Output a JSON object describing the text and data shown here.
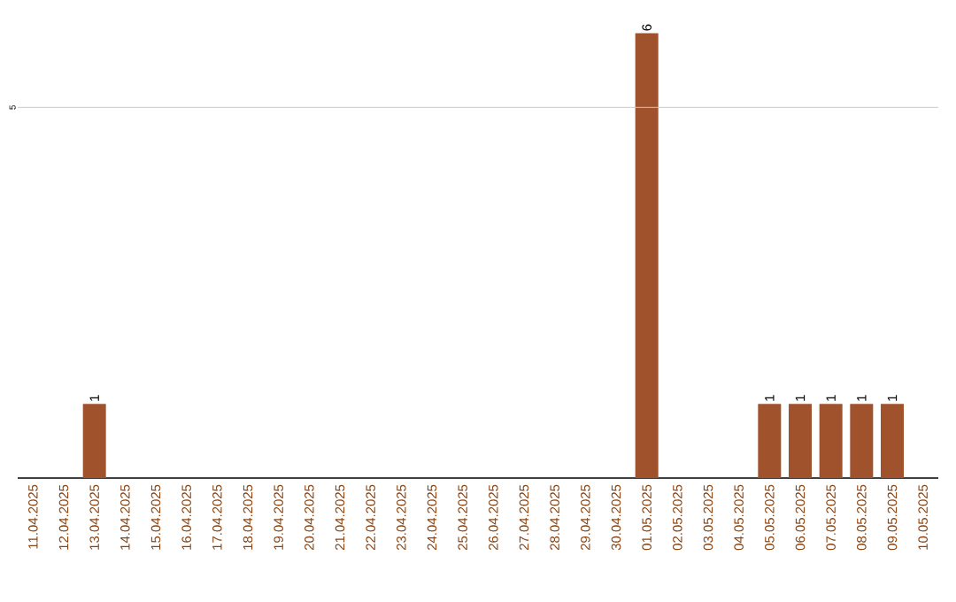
{
  "chart_data": {
    "type": "bar",
    "categories": [
      "11.04.2025",
      "12.04.2025",
      "13.04.2025",
      "14.04.2025",
      "15.04.2025",
      "16.04.2025",
      "17.04.2025",
      "18.04.2025",
      "19.04.2025",
      "20.04.2025",
      "21.04.2025",
      "22.04.2025",
      "23.04.2025",
      "24.04.2025",
      "25.04.2025",
      "26.04.2025",
      "27.04.2025",
      "28.04.2025",
      "29.04.2025",
      "30.04.2025",
      "01.05.2025",
      "02.05.2025",
      "03.05.2025",
      "04.05.2025",
      "05.05.2025",
      "06.05.2025",
      "07.05.2025",
      "08.05.2025",
      "09.05.2025",
      "10.05.2025"
    ],
    "values": [
      0,
      0,
      1,
      0,
      0,
      0,
      0,
      0,
      0,
      0,
      0,
      0,
      0,
      0,
      0,
      0,
      0,
      0,
      0,
      0,
      6,
      0,
      0,
      0,
      1,
      1,
      1,
      1,
      1,
      0
    ],
    "value_labels": [
      null,
      null,
      "1",
      null,
      null,
      null,
      null,
      null,
      null,
      null,
      null,
      null,
      null,
      null,
      null,
      null,
      null,
      null,
      null,
      null,
      "6",
      null,
      null,
      null,
      "1",
      "1",
      "1",
      "1",
      "1",
      null
    ],
    "color": "#a0522d",
    "ref_lines": [
      {
        "axis": "y",
        "value": 5,
        "label": "5",
        "color": "#c8c8c8"
      }
    ]
  }
}
